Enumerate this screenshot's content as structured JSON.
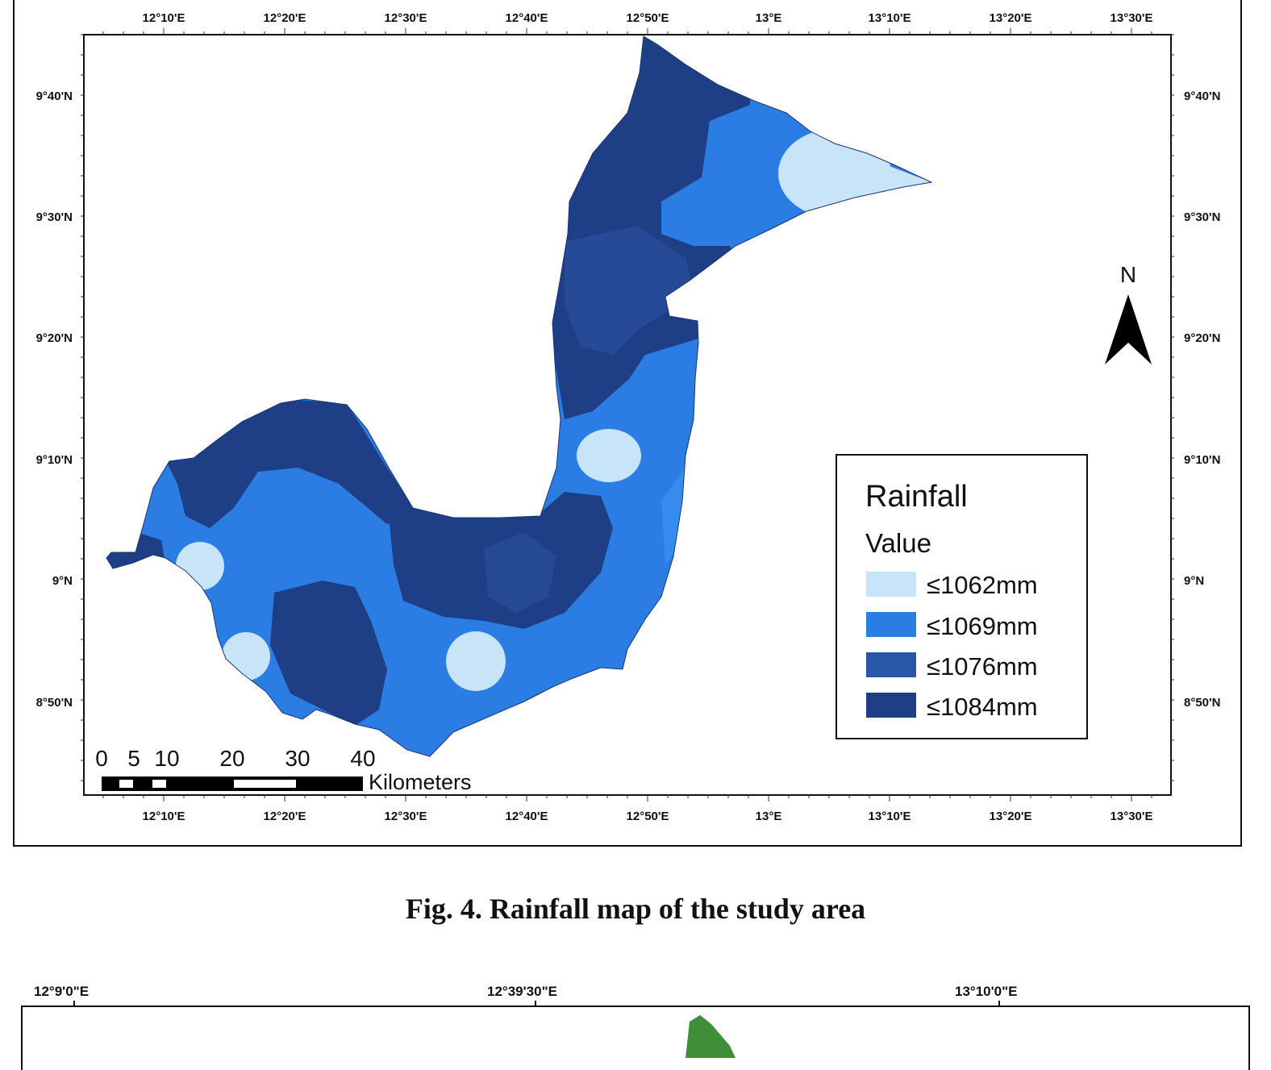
{
  "map1": {
    "top_ticks": [
      "12°10'E",
      "12°20'E",
      "12°30'E",
      "12°40'E",
      "12°50'E",
      "13°E",
      "13°10'E",
      "13°20'E",
      "13°30'E"
    ],
    "left_ticks": [
      "9°40'N",
      "9°30'N",
      "9°20'N",
      "9°10'N",
      "9°N",
      "8°50'N"
    ],
    "legend": {
      "title": "Rainfall",
      "subtitle": "Value",
      "items": [
        {
          "label": "≤1062mm",
          "color": "#c8e4f8"
        },
        {
          "label": "≤1069mm",
          "color": "#2b7de3"
        },
        {
          "label": "≤1076mm",
          "color": "#2a56a8"
        },
        {
          "label": "≤1084mm",
          "color": "#1e3f86"
        }
      ]
    },
    "north_arrow": "N",
    "scale_bar": {
      "numbers": [
        "0",
        "5",
        "10",
        "20",
        "30",
        "40"
      ],
      "unit": "Kilometers"
    }
  },
  "caption": "Fig. 4. Rainfall map of the study area",
  "map2": {
    "top_labels": [
      "12°9'0\"E",
      "12°39'30\"E",
      "13°10'0\"E"
    ]
  }
}
